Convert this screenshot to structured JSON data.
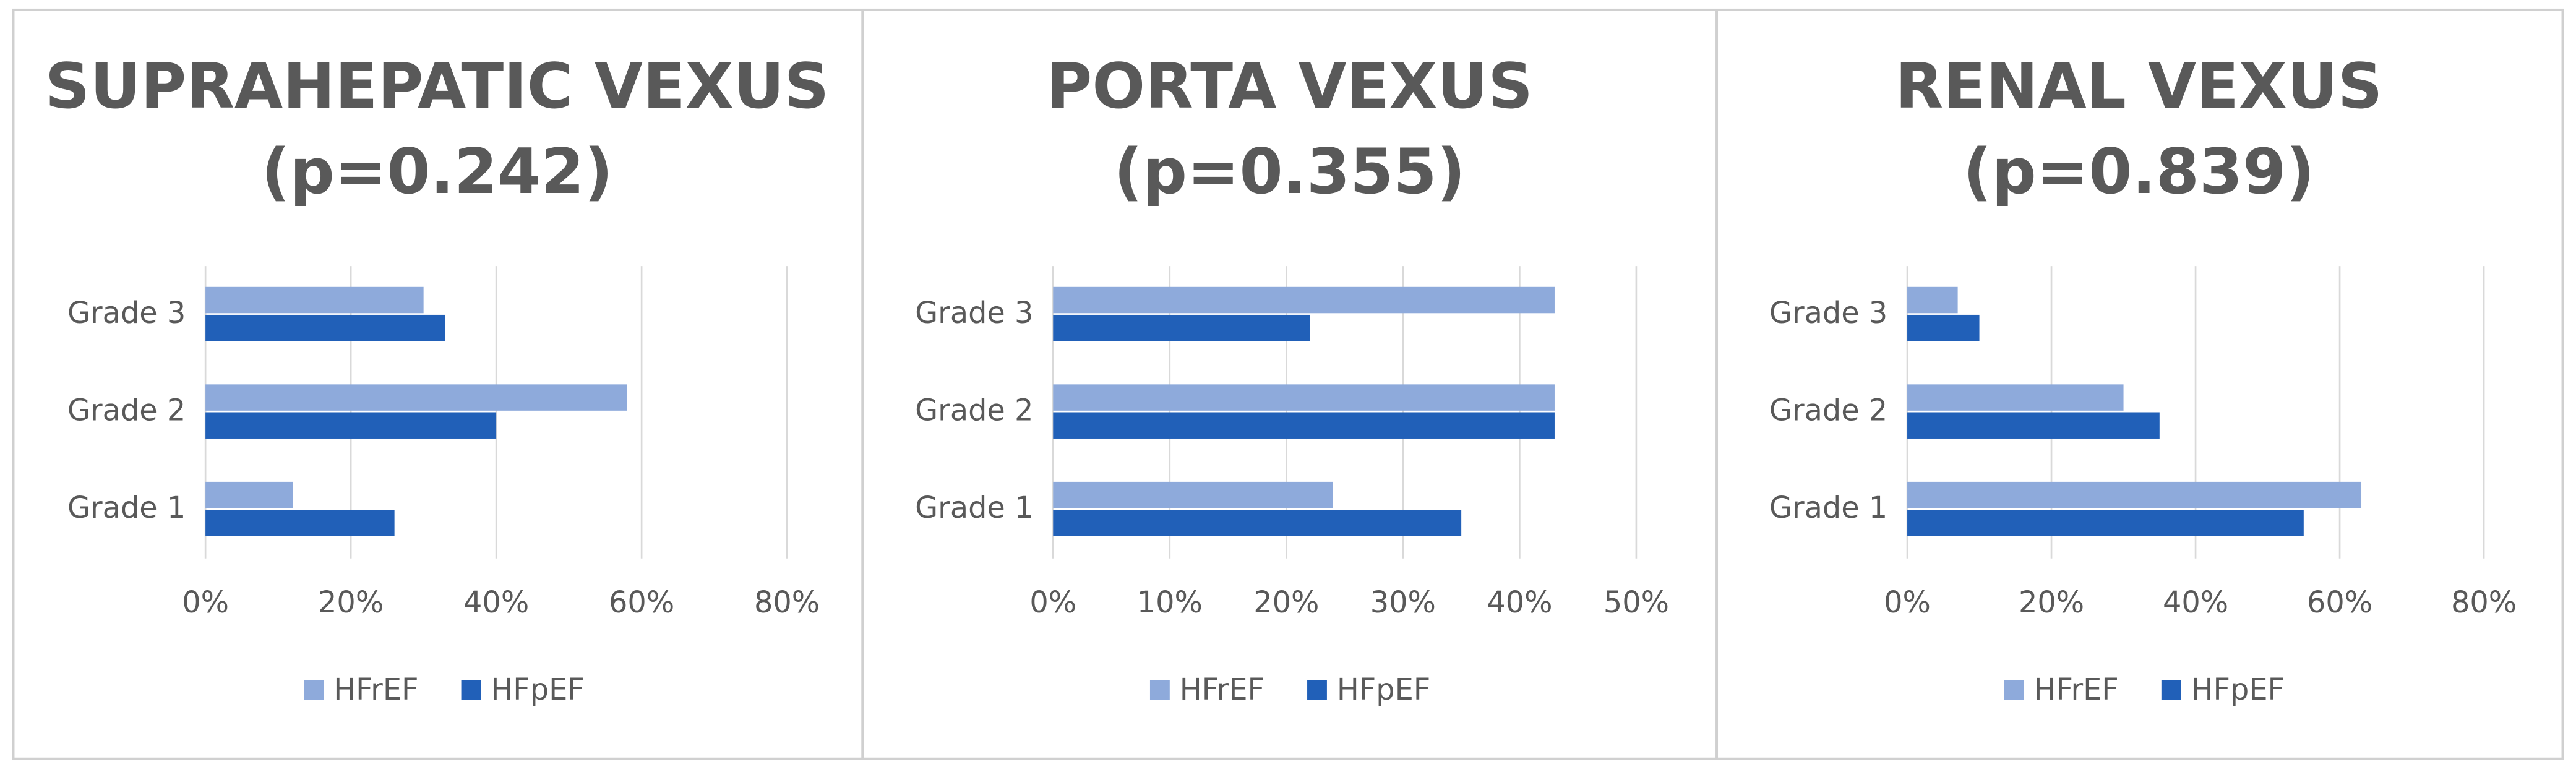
{
  "chart_data": [
    {
      "type": "bar",
      "orientation": "horizontal",
      "title": "SUPRAHEPATIC VEXUS",
      "subtitle": "(p=0.242)",
      "categories": [
        "Grade 1",
        "Grade 2",
        "Grade 3"
      ],
      "series": [
        {
          "name": "HFrEF",
          "color": "#8eaadb",
          "values": [
            12,
            58,
            30
          ]
        },
        {
          "name": "HFpEF",
          "color": "#2160b8",
          "values": [
            26,
            40,
            33
          ]
        }
      ],
      "xlim": [
        0,
        80
      ],
      "xticks": [
        {
          "value": 0,
          "label": "0%"
        },
        {
          "value": 20,
          "label": "20%"
        },
        {
          "value": 40,
          "label": "40%"
        },
        {
          "value": 60,
          "label": "60%"
        },
        {
          "value": 80,
          "label": "80%"
        }
      ],
      "grid": true,
      "legend": "bottom"
    },
    {
      "type": "bar",
      "orientation": "horizontal",
      "title": "PORTA VEXUS",
      "subtitle": "(p=0.355)",
      "categories": [
        "Grade 1",
        "Grade 2",
        "Grade 3"
      ],
      "series": [
        {
          "name": "HFrEF",
          "color": "#8eaadb",
          "values": [
            24,
            43,
            43
          ]
        },
        {
          "name": "HFpEF",
          "color": "#2160b8",
          "values": [
            35,
            43,
            22
          ]
        }
      ],
      "xlim": [
        0,
        50
      ],
      "xticks": [
        {
          "value": 0,
          "label": "0%"
        },
        {
          "value": 10,
          "label": "10%"
        },
        {
          "value": 20,
          "label": "20%"
        },
        {
          "value": 30,
          "label": "30%"
        },
        {
          "value": 40,
          "label": "40%"
        },
        {
          "value": 50,
          "label": "50%"
        }
      ],
      "grid": true,
      "legend": "bottom"
    },
    {
      "type": "bar",
      "orientation": "horizontal",
      "title": "RENAL VEXUS",
      "subtitle": "(p=0.839)",
      "categories": [
        "Grade 1",
        "Grade 2",
        "Grade 3"
      ],
      "series": [
        {
          "name": "HFrEF",
          "color": "#8eaadb",
          "values": [
            63,
            30,
            7
          ]
        },
        {
          "name": "HFpEF",
          "color": "#2160b8",
          "values": [
            55,
            35,
            10
          ]
        }
      ],
      "xlim": [
        0,
        80
      ],
      "xticks": [
        {
          "value": 0,
          "label": "0%"
        },
        {
          "value": 20,
          "label": "20%"
        },
        {
          "value": 40,
          "label": "40%"
        },
        {
          "value": 60,
          "label": "60%"
        },
        {
          "value": 80,
          "label": "80%"
        }
      ],
      "grid": true,
      "legend": "bottom"
    }
  ]
}
